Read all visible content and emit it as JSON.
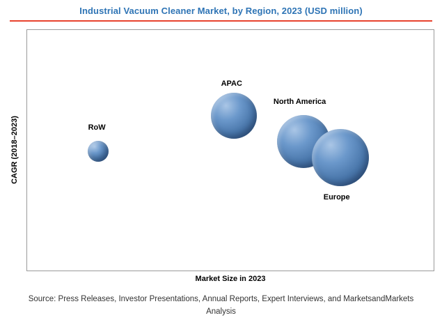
{
  "colors": {
    "title": "#2e74b5",
    "divider": "#e8432e",
    "bubble_main": "#4f81bd",
    "bubble_light": "#aac6e6",
    "bubble_dark": "#2d4f7c"
  },
  "source": {
    "line1": "Source: Press Releases, Investor Presentations, Annual Reports, Expert Interviews, and MarketsandMarkets",
    "line2": "Analysis"
  },
  "chart_data": {
    "type": "bubble",
    "title": "Industrial Vacuum Cleaner Market, by Region, 2023 (USD million)",
    "xlabel": "Market Size in 2023",
    "ylabel": "CAGR (2018–2023)",
    "axes": {
      "x_ticks_visible": false,
      "y_ticks_visible": false,
      "grid": false,
      "note": "axes are unlabeled in the figure; bubble positions are relative placements read from the plot"
    },
    "points": [
      {
        "name": "RoW",
        "x_pct": 17.4,
        "y_pct": 50.3,
        "radius_px": 15,
        "label_x_pct": 15.0,
        "label_y_pct": 38.8
      },
      {
        "name": "APAC",
        "x_pct": 50.9,
        "y_pct": 35.6,
        "radius_px": 33,
        "label_x_pct": 47.7,
        "label_y_pct": 20.7
      },
      {
        "name": "North America",
        "x_pct": 68.0,
        "y_pct": 46.3,
        "radius_px": 38,
        "label_x_pct": 60.6,
        "label_y_pct": 28.2
      },
      {
        "name": "Europe",
        "x_pct": 77.0,
        "y_pct": 52.9,
        "radius_px": 41,
        "label_x_pct": 72.9,
        "label_y_pct": 67.8
      }
    ]
  }
}
